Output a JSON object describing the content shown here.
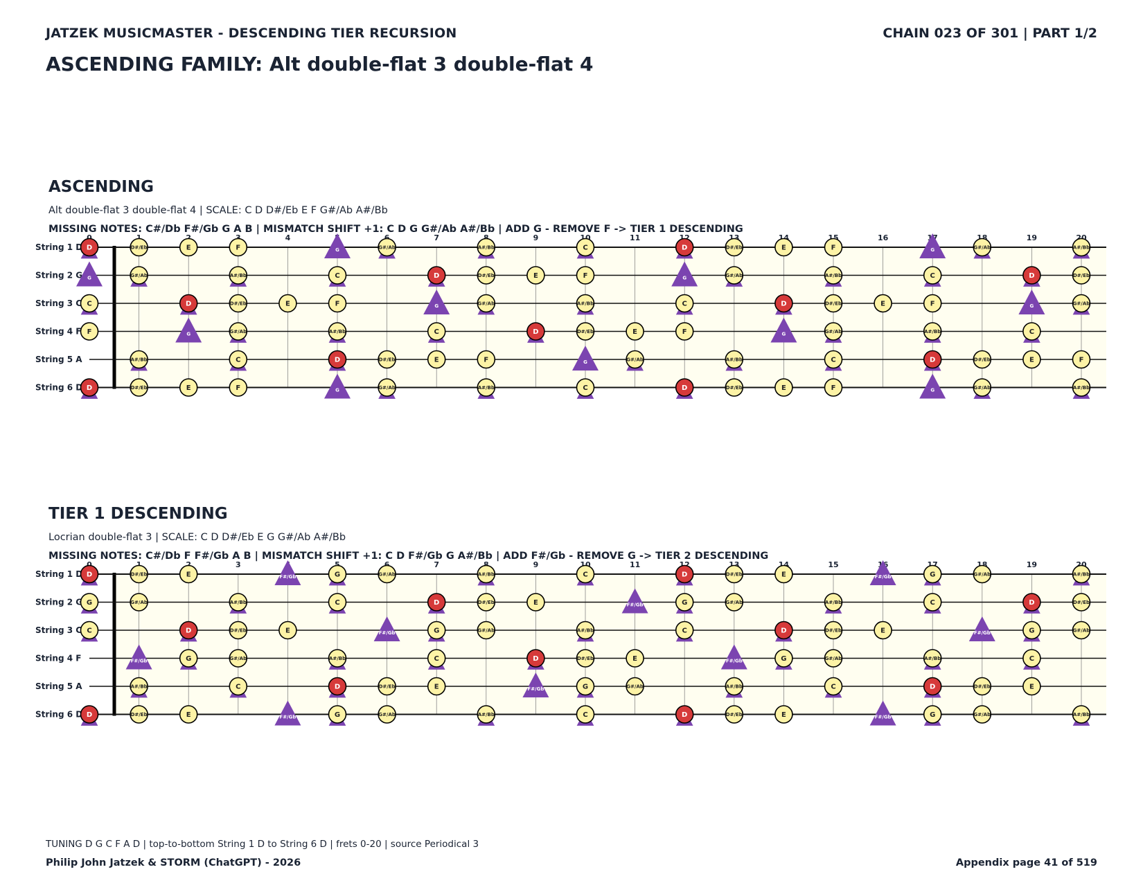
{
  "header": {
    "left": "JATZEK MUSICMASTER - DESCENDING TIER RECURSION",
    "right": "CHAIN 023 OF 301  |  PART 1/2",
    "title": "ASCENDING FAMILY: Alt double-flat 3 double-flat 4"
  },
  "fret_numbers": [
    "0",
    "1",
    "2",
    "3",
    "4",
    "5",
    "6",
    "7",
    "8",
    "9",
    "10",
    "11",
    "12",
    "13",
    "14",
    "15",
    "16",
    "17",
    "18",
    "19",
    "20"
  ],
  "string_labels": [
    "String 1 D",
    "String 2 G",
    "String 3 C",
    "String 4 F",
    "String 5 A",
    "String 6 D"
  ],
  "tuning": [
    "D",
    "G",
    "C",
    "F",
    "A",
    "D"
  ],
  "colors": {
    "root": "#d63a3a",
    "note": "#fdf3a6",
    "added": "#7b44b0",
    "board": "#fffef0"
  },
  "sections": [
    {
      "title": "ASCENDING",
      "subtitle": "Alt double-flat 3 double-flat 4  |  SCALE: C D D#/Eb E F G#/Ab A#/Bb",
      "missing": "MISSING NOTES: C#/Db F#/Gb G A B  |  MISMATCH SHIFT +1: C D G G#/Ab A#/Bb  |  ADD G - REMOVE F -> TIER 1 DESCENDING",
      "root": "D",
      "scale": [
        "C",
        "D",
        "D#/Eb",
        "E",
        "F",
        "G#/Ab",
        "A#/Bb"
      ],
      "shift": [
        "C",
        "D",
        "G",
        "G#/Ab",
        "A#/Bb"
      ],
      "add": "G",
      "remove": "F"
    },
    {
      "title": "TIER 1 DESCENDING",
      "subtitle": "Locrian double-flat 3  |  SCALE: C D D#/Eb E G G#/Ab A#/Bb",
      "missing": "MISSING NOTES: C#/Db F F#/Gb A B  |  MISMATCH SHIFT +1: C D F#/Gb G A#/Bb  |  ADD F#/Gb - REMOVE G -> TIER 2 DESCENDING",
      "root": "D",
      "scale": [
        "C",
        "D",
        "D#/Eb",
        "E",
        "G",
        "G#/Ab",
        "A#/Bb"
      ],
      "shift": [
        "C",
        "D",
        "F#/Gb",
        "G",
        "A#/Bb"
      ],
      "add": "F#/Gb",
      "remove": "G"
    }
  ],
  "footer": {
    "note": "TUNING D G C F A D | top-to-bottom String 1 D to String 6 D | frets 0-20 | source Periodical 3",
    "left": "Philip John Jatzek & STORM (ChatGPT) - 2026",
    "right": "Appendix page 41 of 519"
  }
}
